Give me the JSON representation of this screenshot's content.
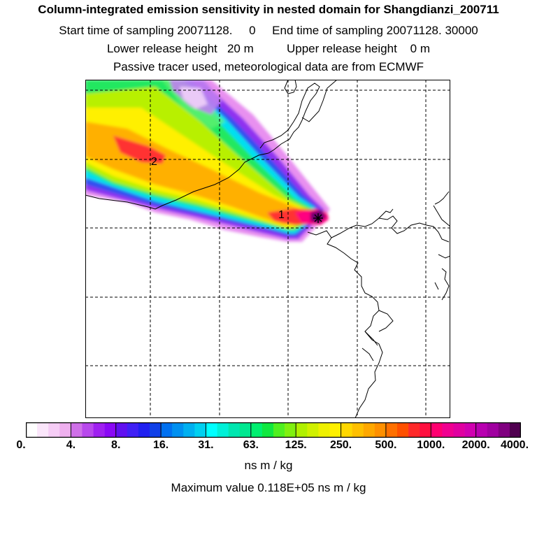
{
  "header": {
    "title": "Column-integrated emission sensitivity in nested domain for Shangdianzi_200711",
    "sampling_line": "Start time of sampling 20071128.     0     End time of sampling 20071128. 30000",
    "release_line": "Lower release height   20 m          Upper release height    0 m",
    "tracer_line": "Passive tracer used, meteorological data are from ECMWF"
  },
  "map": {
    "point_labels": [
      "1",
      "2"
    ]
  },
  "colorbar": {
    "tick_labels": [
      "0.",
      "4.",
      "8.",
      "16.",
      "31.",
      "63.",
      "125.",
      "250.",
      "500.",
      "1000.",
      "2000.",
      "4000."
    ],
    "colors": [
      "#ffffff",
      "#fbe6fb",
      "#f6cdf6",
      "#efb0ef",
      "#cf70e8",
      "#b848ec",
      "#9f20f0",
      "#8a08f5",
      "#6010f0",
      "#4020f5",
      "#2020f0",
      "#1040e8",
      "#0070f0",
      "#0090f0",
      "#00b0f0",
      "#00d0f0",
      "#00ffff",
      "#00f0d8",
      "#00e6b0",
      "#00e890",
      "#00f070",
      "#10e840",
      "#50f020",
      "#80f010",
      "#b0f000",
      "#d0f000",
      "#eef000",
      "#fff000",
      "#ffd800",
      "#ffc000",
      "#ffa800",
      "#ff9000",
      "#ff7000",
      "#ff5000",
      "#ff2a2a",
      "#ff1040",
      "#ff0070",
      "#f00090",
      "#e000a0",
      "#d000b0",
      "#b800b0",
      "#a000a0",
      "#800080",
      "#500050"
    ],
    "units": "ns m / kg",
    "max_value": "Maximum value  0.118E+05 ns m / kg"
  }
}
